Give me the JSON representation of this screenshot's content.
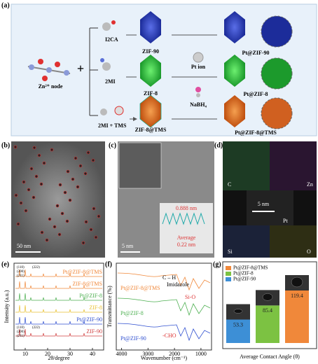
{
  "panels": {
    "a": {
      "label": "(a)",
      "node": "Zn²⁺ node",
      "plus": "+",
      "ligands": [
        "I2CA",
        "2MI",
        "2MI + TMS"
      ],
      "frameworks": [
        "ZIF-90",
        "ZIF-8",
        "ZIF-8@TMS"
      ],
      "pt_ion": "Pt ion",
      "reductant": "NaBH₄",
      "products": [
        "Pt@ZIF-90",
        "Pt@ZIF-8",
        "Pt@ZIF-8@TMS"
      ]
    },
    "b": {
      "label": "(b)",
      "scale": "50 nm"
    },
    "c": {
      "label": "(c)",
      "scale": "5 nm",
      "spacing": "0.888 nm",
      "average": "Average",
      "average_value": "0.22 nm"
    },
    "d": {
      "label": "(d)",
      "elements": [
        "C",
        "Zn",
        "Pt",
        "Si",
        "O"
      ],
      "scale": "5 nm"
    },
    "e": {
      "label": "(e)",
      "traces": [
        "Pt@ZIF-8@TMS",
        "ZIF-8@TMS",
        "Pt@ZIF-8",
        "ZIF-8",
        "Pt@ZIF-90",
        "ZIF-90"
      ],
      "peaks_top": [
        "(110)",
        "(200)",
        "(211)",
        "(222)"
      ],
      "peaks_bottom": [
        "(110)",
        "(200)",
        "(211)",
        "(222)"
      ]
    },
    "f": {
      "label": "(f)",
      "traces": [
        "Pt@ZIF-8@TMS",
        "Pt@ZIF-8",
        "Pt@ZIF-90"
      ],
      "annotations": [
        "C – H",
        "Imidazole",
        "Si-O",
        "-CHO"
      ]
    },
    "g": {
      "label": "(g)"
    }
  },
  "chart_data": [
    {
      "type": "line",
      "xlabel": "2θ/degree",
      "ylabel": "Intensity (a.u.)",
      "xlim": [
        5,
        45
      ],
      "xticks": [
        10,
        20,
        30,
        40
      ]
    },
    {
      "type": "line",
      "xlabel": "Wavenumber (cm⁻¹)",
      "ylabel": "Transmittance (%)",
      "xlim": [
        4200,
        600
      ],
      "xticks": [
        4000,
        3000,
        2000,
        1000
      ]
    },
    {
      "type": "bar",
      "xlabel": "Average Contact Angle (θ)",
      "categories": [
        "Pt@ZIF-90",
        "Pt@ZIF-8",
        "Pt@ZIF-8@TMS"
      ],
      "values": [
        53.3,
        85.4,
        119.4
      ],
      "colors": [
        "#3d8fd6",
        "#7cc242",
        "#f0883a"
      ]
    }
  ]
}
